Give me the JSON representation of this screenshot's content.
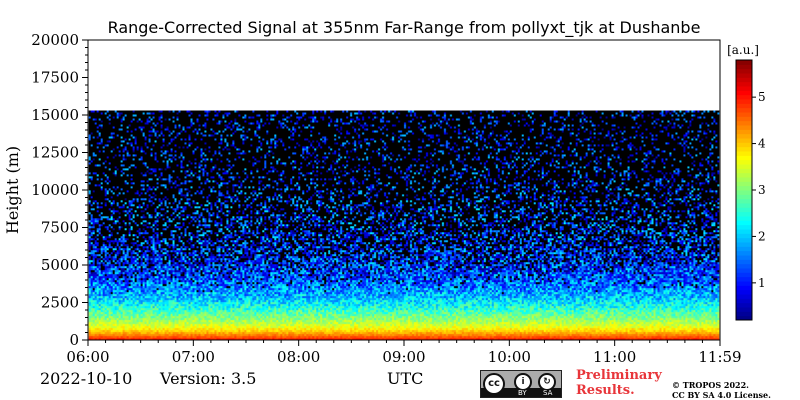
{
  "chart_data": {
    "type": "heatmap",
    "title": "Range-Corrected Signal at 355nm Far-Range from pollyxt_tjk at Dushanbe",
    "xlabel": "UTC",
    "ylabel": "Height (m)",
    "x_ticks": [
      "06:00",
      "07:00",
      "08:00",
      "09:00",
      "10:00",
      "11:00",
      "11:59"
    ],
    "y_ticks": [
      0,
      2500,
      5000,
      7500,
      10000,
      12500,
      15000,
      17500,
      20000
    ],
    "ylim": [
      0,
      20000
    ],
    "data_top_height": 15300,
    "colorbar": {
      "label": "[a.u.]",
      "range": [
        0.2,
        5.8
      ],
      "ticks": [
        1,
        2,
        3,
        4,
        5
      ],
      "colormap": "jet"
    },
    "signal_profile": [
      {
        "height": 0,
        "value": 4.3
      },
      {
        "height": 100,
        "value": 4.9
      },
      {
        "height": 300,
        "value": 4.5
      },
      {
        "height": 600,
        "value": 4.0
      },
      {
        "height": 900,
        "value": 3.6
      },
      {
        "height": 1300,
        "value": 3.2
      },
      {
        "height": 1800,
        "value": 2.8
      },
      {
        "height": 2400,
        "value": 2.3
      },
      {
        "height": 3000,
        "value": 1.9
      },
      {
        "height": 4000,
        "value": 1.4
      },
      {
        "height": 5000,
        "value": 1.1
      },
      {
        "height": 6500,
        "value": 0.8
      },
      {
        "height": 8000,
        "value": 0.6
      },
      {
        "height": 10000,
        "value": 0.45
      },
      {
        "height": 12500,
        "value": 0.35
      },
      {
        "height": 15300,
        "value": 0.3
      }
    ]
  },
  "footer": {
    "date": "2022-10-10",
    "version": "Version: 3.5",
    "utc": "UTC",
    "preliminary_line1": "Preliminary",
    "preliminary_line2": "Results.",
    "copyright_line1": "© TROPOS 2022.",
    "copyright_line2": "CC BY SA 4.0 License.",
    "cc_logo": "cc",
    "cc_by": "BY",
    "cc_sa": "SA"
  },
  "colors": {
    "preliminary": "#e8353a",
    "background": "#ffffff"
  }
}
